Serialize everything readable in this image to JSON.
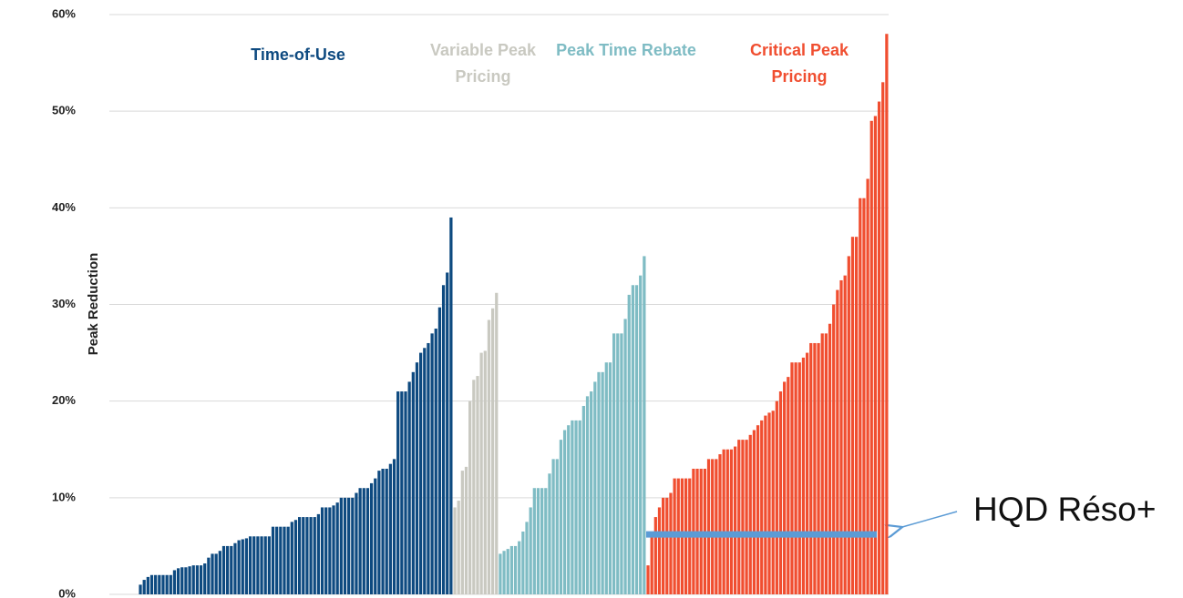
{
  "chart_data": {
    "type": "bar",
    "y_label": "Peak Reduction",
    "ylim": [
      0,
      60
    ],
    "yticks": [
      {
        "value": 0,
        "label": "0%"
      },
      {
        "value": 10,
        "label": "10%"
      },
      {
        "value": 20,
        "label": "20%"
      },
      {
        "value": 30,
        "label": "30%"
      },
      {
        "value": 40,
        "label": "40%"
      },
      {
        "value": 50,
        "label": "50%"
      },
      {
        "value": 60,
        "label": "60%"
      }
    ],
    "grid": true,
    "series": [
      {
        "name": "Time-of-Use",
        "color": "#0e4a80",
        "values": [
          1,
          1.5,
          1.8,
          2,
          2,
          2,
          2,
          2,
          2,
          2.5,
          2.7,
          2.8,
          2.8,
          2.9,
          3,
          3,
          3,
          3.2,
          3.8,
          4.2,
          4.2,
          4.5,
          5,
          5,
          5,
          5.3,
          5.6,
          5.7,
          5.8,
          6,
          6,
          6,
          6,
          6,
          6,
          7,
          7,
          7,
          7,
          7,
          7.5,
          7.7,
          8,
          8,
          8,
          8,
          8,
          8.3,
          9,
          9,
          9,
          9.2,
          9.5,
          10,
          10,
          10,
          10,
          10.5,
          11,
          11,
          11,
          11.5,
          12,
          12.8,
          13,
          13,
          13.5,
          14,
          21,
          21,
          21,
          22,
          23,
          24,
          25,
          25.5,
          26,
          27,
          27.5,
          29.7,
          32,
          33.3,
          39
        ]
      },
      {
        "name": "Variable Peak Pricing",
        "color": "#c9c9c1",
        "values": [
          9,
          9.7,
          12.8,
          13.2,
          20,
          22.2,
          22.6,
          25,
          25.2,
          28.4,
          29.6,
          31.2
        ]
      },
      {
        "name": "Peak Time Rebate",
        "color": "#7fbcc4",
        "values": [
          4.2,
          4.5,
          4.7,
          5,
          5,
          5.5,
          6.5,
          7.5,
          9,
          11,
          11,
          11,
          11,
          12.5,
          14,
          14,
          16,
          17,
          17.5,
          18,
          18,
          18,
          19.5,
          20.5,
          21,
          22,
          23,
          23,
          24,
          24,
          27,
          27,
          27,
          28.5,
          31,
          32,
          32,
          33,
          35
        ]
      },
      {
        "name": "Critical Peak Pricing",
        "color": "#f04e30",
        "values": [
          3,
          6.5,
          8,
          9,
          10,
          10,
          10.5,
          12,
          12,
          12,
          12,
          12,
          13,
          13,
          13,
          13,
          14,
          14,
          14,
          14.5,
          15,
          15,
          15,
          15.3,
          16,
          16,
          16,
          16.5,
          17,
          17.5,
          18,
          18.5,
          18.8,
          19,
          20,
          21,
          22,
          22.5,
          24,
          24,
          24,
          24.5,
          25,
          26,
          26,
          26,
          27,
          27,
          28,
          30,
          31.5,
          32.5,
          33,
          35,
          37,
          37,
          41,
          41,
          43,
          49,
          49.5,
          51,
          53,
          58
        ]
      }
    ],
    "reference_line": {
      "label": "HQD Réso+",
      "value": 6.2,
      "color": "#5b9bd5"
    }
  }
}
